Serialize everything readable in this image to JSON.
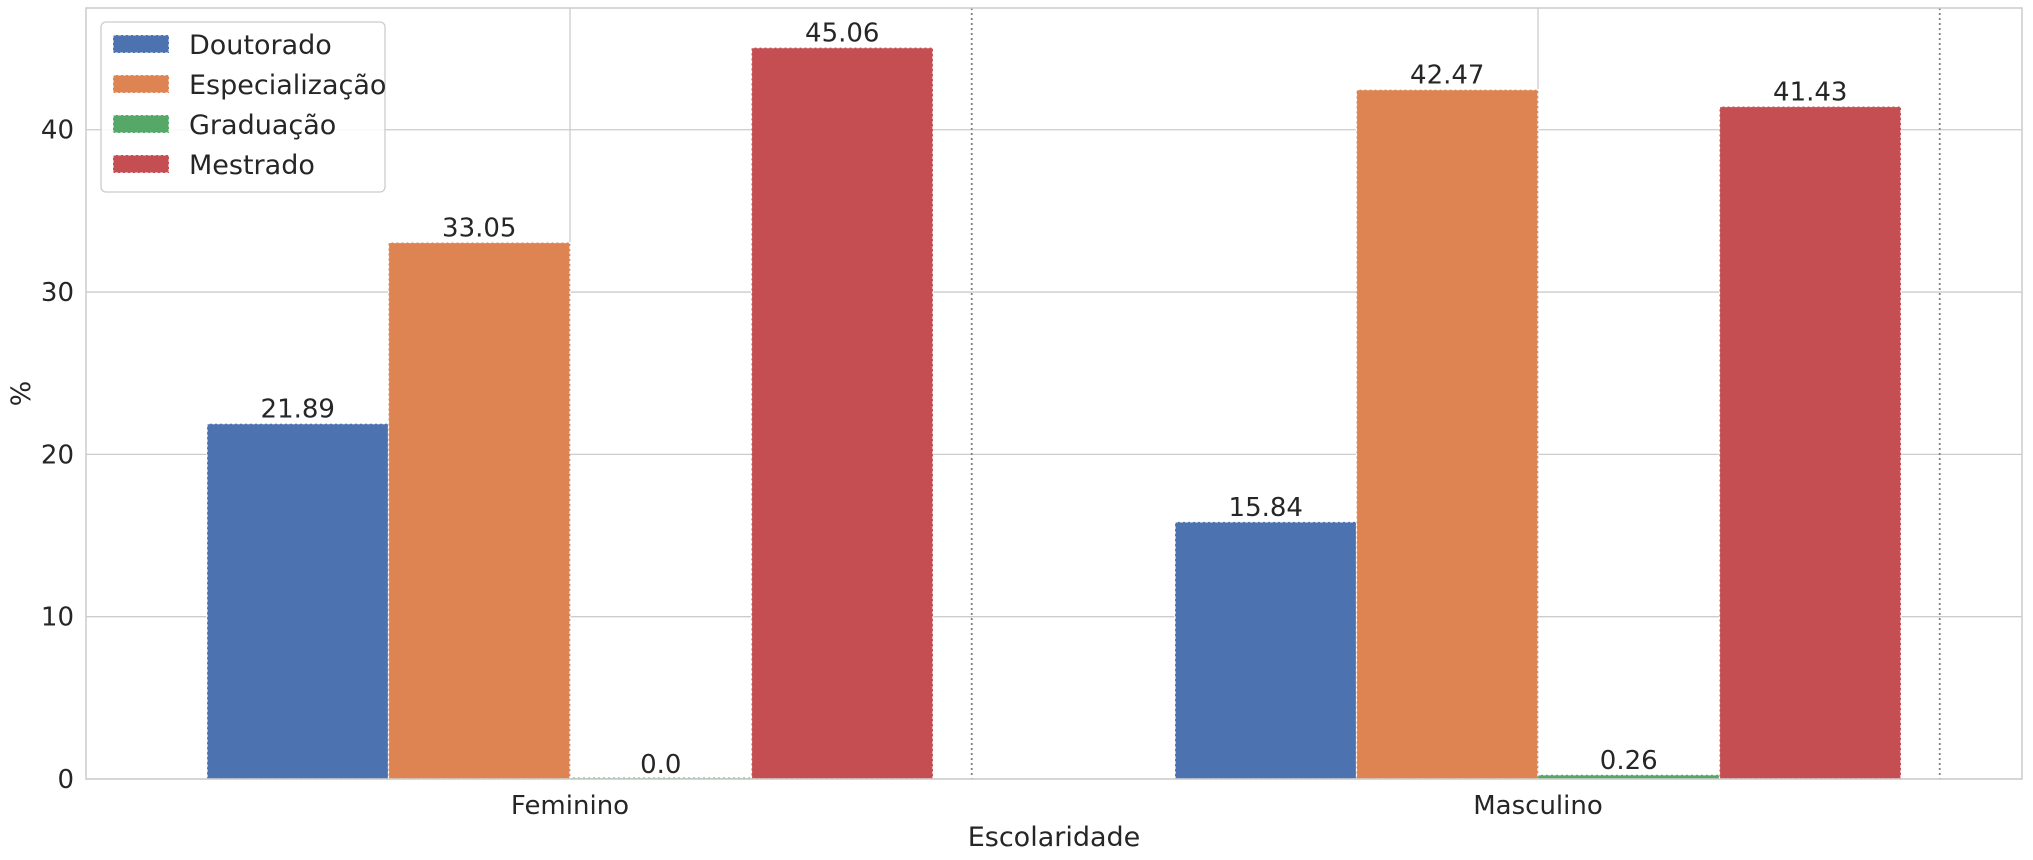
{
  "chart_data": {
    "type": "bar",
    "title": "",
    "xlabel": "Escolaridade",
    "ylabel": "%",
    "categories": [
      "Feminino",
      "Masculino"
    ],
    "series": [
      {
        "name": "Doutorado",
        "color": "#4c72b0",
        "values": [
          21.89,
          15.84
        ],
        "labels": [
          "21.89",
          "15.84"
        ]
      },
      {
        "name": "Especialização",
        "color": "#dd8452",
        "values": [
          33.05,
          42.47
        ],
        "labels": [
          "33.05",
          "42.47"
        ]
      },
      {
        "name": "Graduação",
        "color": "#55a868",
        "values": [
          0.0,
          0.26
        ],
        "labels": [
          "0.0",
          "0.26"
        ]
      },
      {
        "name": "Mestrado",
        "color": "#c44e52",
        "values": [
          45.06,
          41.43
        ],
        "labels": [
          "45.06",
          "41.43"
        ]
      }
    ],
    "ylim": [
      0,
      47.5
    ],
    "yticks": [
      0,
      10,
      20,
      30,
      40
    ],
    "grid": true,
    "legend_position": "top-left"
  }
}
